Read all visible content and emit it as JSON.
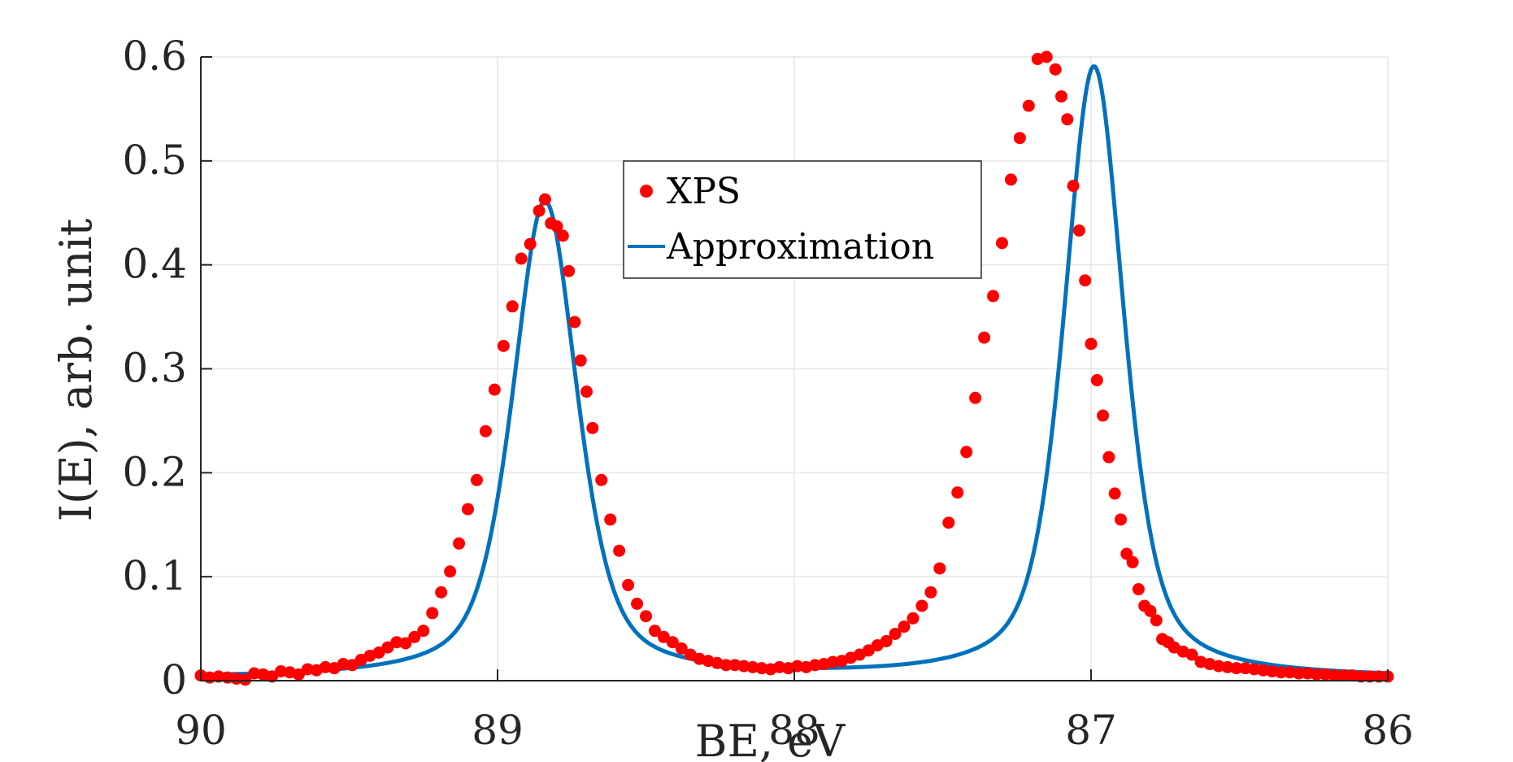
{
  "chart_data": {
    "type": "scatter",
    "title": "",
    "xlabel": "BE, eV",
    "ylabel": "I(E), arb. unit",
    "xlim": [
      90,
      86
    ],
    "ylim": [
      0,
      0.6
    ],
    "x_reversed": true,
    "grid": true,
    "xticks": [
      90,
      89,
      88,
      87,
      86
    ],
    "yticks": [
      0,
      0.1,
      0.2,
      0.3,
      0.4,
      0.5,
      0.6
    ],
    "xtick_labels": [
      "90",
      "89",
      "88",
      "87",
      "86"
    ],
    "ytick_labels": [
      "0",
      "0.1",
      "0.2",
      "0.3",
      "0.4",
      "0.5",
      "0.6"
    ],
    "legend_position": "top-center",
    "colors": {
      "xps": "#ff0000",
      "approximation": "#0072bd",
      "axis": "#262626",
      "grid": "#e6e6e6"
    },
    "series": [
      {
        "name": "XPS",
        "kind": "scatter",
        "x": [
          90.0,
          89.97,
          89.94,
          89.91,
          89.88,
          89.85,
          89.82,
          89.79,
          89.76,
          89.73,
          89.7,
          89.67,
          89.64,
          89.61,
          89.58,
          89.55,
          89.52,
          89.49,
          89.46,
          89.43,
          89.4,
          89.37,
          89.34,
          89.31,
          89.28,
          89.25,
          89.22,
          89.19,
          89.16,
          89.13,
          89.1,
          89.07,
          89.04,
          89.01,
          88.98,
          88.95,
          88.92,
          88.89,
          88.86,
          88.84,
          88.82,
          88.8,
          88.78,
          88.76,
          88.74,
          88.72,
          88.7,
          88.68,
          88.65,
          88.62,
          88.59,
          88.56,
          88.53,
          88.5,
          88.47,
          88.44,
          88.41,
          88.38,
          88.35,
          88.32,
          88.29,
          88.26,
          88.23,
          88.2,
          88.17,
          88.14,
          88.11,
          88.08,
          88.05,
          88.02,
          87.99,
          87.96,
          87.93,
          87.9,
          87.87,
          87.84,
          87.81,
          87.78,
          87.75,
          87.72,
          87.69,
          87.66,
          87.63,
          87.6,
          87.57,
          87.54,
          87.51,
          87.48,
          87.45,
          87.42,
          87.39,
          87.36,
          87.33,
          87.3,
          87.27,
          87.24,
          87.21,
          87.18,
          87.15,
          87.12,
          87.1,
          87.08,
          87.06,
          87.04,
          87.02,
          87.0,
          86.98,
          86.96,
          86.94,
          86.92,
          86.9,
          86.88,
          86.86,
          86.84,
          86.82,
          86.8,
          86.78,
          86.76,
          86.74,
          86.72,
          86.69,
          86.66,
          86.63,
          86.6,
          86.57,
          86.54,
          86.51,
          86.48,
          86.45,
          86.42,
          86.39,
          86.36,
          86.33,
          86.3,
          86.27,
          86.24,
          86.21,
          86.18,
          86.15,
          86.12,
          86.09,
          86.06,
          86.03,
          86.0
        ],
        "y": [
          0.005,
          0.003,
          0.004,
          0.003,
          0.002,
          0.001,
          0.007,
          0.006,
          0.004,
          0.009,
          0.008,
          0.006,
          0.011,
          0.01,
          0.013,
          0.012,
          0.016,
          0.015,
          0.02,
          0.024,
          0.027,
          0.032,
          0.037,
          0.036,
          0.042,
          0.048,
          0.065,
          0.085,
          0.105,
          0.132,
          0.165,
          0.193,
          0.24,
          0.28,
          0.322,
          0.36,
          0.406,
          0.42,
          0.452,
          0.463,
          0.44,
          0.437,
          0.428,
          0.394,
          0.345,
          0.308,
          0.278,
          0.243,
          0.193,
          0.155,
          0.125,
          0.092,
          0.074,
          0.062,
          0.048,
          0.042,
          0.037,
          0.031,
          0.025,
          0.021,
          0.019,
          0.017,
          0.015,
          0.015,
          0.014,
          0.013,
          0.012,
          0.011,
          0.013,
          0.012,
          0.014,
          0.013,
          0.015,
          0.016,
          0.018,
          0.019,
          0.022,
          0.025,
          0.029,
          0.034,
          0.038,
          0.045,
          0.052,
          0.06,
          0.072,
          0.085,
          0.108,
          0.152,
          0.181,
          0.22,
          0.272,
          0.33,
          0.37,
          0.421,
          0.482,
          0.522,
          0.553,
          0.598,
          0.6,
          0.588,
          0.562,
          0.54,
          0.476,
          0.433,
          0.385,
          0.324,
          0.289,
          0.255,
          0.215,
          0.18,
          0.155,
          0.122,
          0.114,
          0.088,
          0.072,
          0.067,
          0.058,
          0.04,
          0.037,
          0.032,
          0.028,
          0.025,
          0.018,
          0.016,
          0.014,
          0.013,
          0.012,
          0.012,
          0.011,
          0.01,
          0.009,
          0.008,
          0.008,
          0.007,
          0.007,
          0.006,
          0.006,
          0.005,
          0.005,
          0.005,
          0.004,
          0.004,
          0.004,
          0.004
        ]
      },
      {
        "name": "Approximation",
        "kind": "line",
        "peaks": [
          {
            "center": 88.84,
            "height": 0.458,
            "fwhm": 0.26
          },
          {
            "center": 86.99,
            "height": 0.588,
            "fwhm": 0.24
          }
        ]
      }
    ]
  }
}
